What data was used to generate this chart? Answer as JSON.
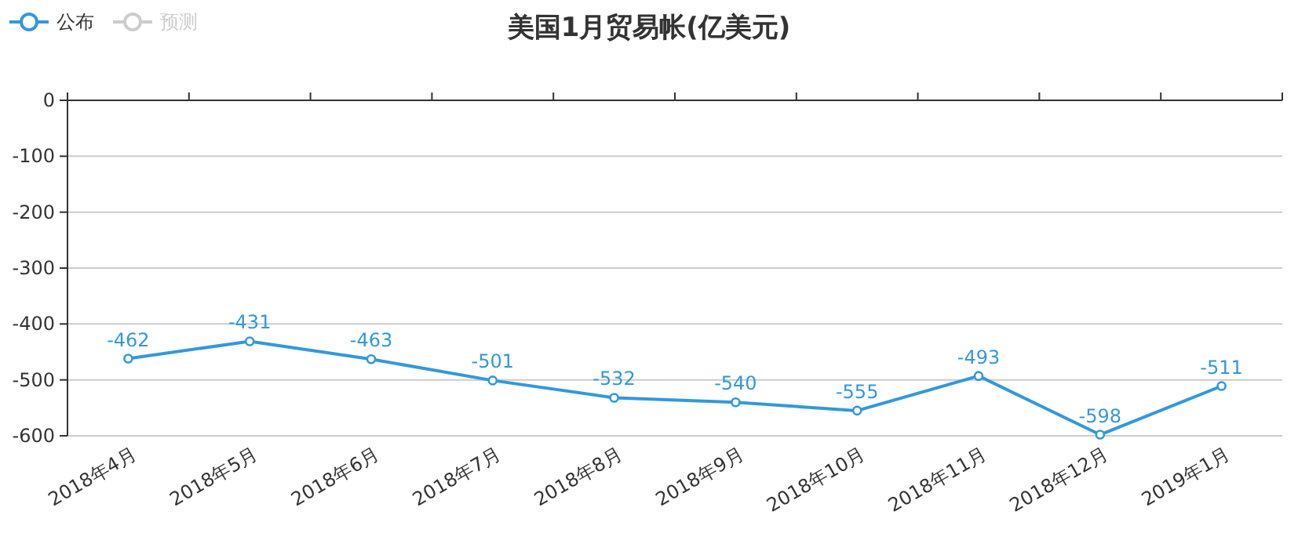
{
  "chart_data": {
    "type": "line",
    "title": "美国1月贸易帐(亿美元)",
    "categories": [
      "2018年4月",
      "2018年5月",
      "2018年6月",
      "2018年7月",
      "2018年8月",
      "2018年9月",
      "2018年10月",
      "2018年11月",
      "2018年12月",
      "2019年1月"
    ],
    "series": [
      {
        "name": "公布",
        "color": "#3398db",
        "values": [
          -462,
          -431,
          -463,
          -501,
          -532,
          -540,
          -555,
          -493,
          -598,
          -511
        ]
      },
      {
        "name": "预测",
        "color": "#cccccc",
        "values": [
          null,
          null,
          null,
          null,
          null,
          null,
          null,
          null,
          null,
          null
        ]
      }
    ],
    "ylim": [
      -600,
      0
    ],
    "yticks": [
      -600,
      -500,
      -400,
      -300,
      -200,
      -100,
      0
    ],
    "grid": "y",
    "legend": "top left",
    "marker": "circle",
    "data_labels": true
  }
}
